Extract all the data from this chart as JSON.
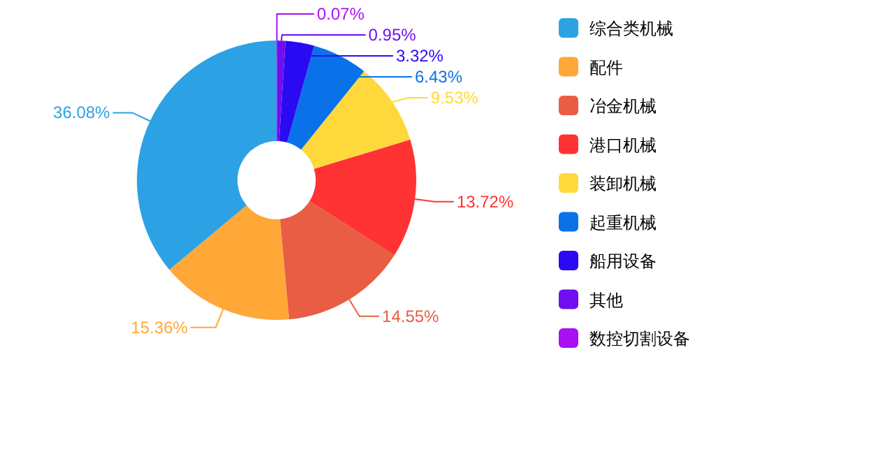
{
  "chart_data": {
    "type": "donut",
    "categories": [
      "综合类机械",
      "配件",
      "冶金机械",
      "港口机械",
      "装卸机械",
      "起重机械",
      "船用设备",
      "其他",
      "数控切割设备"
    ],
    "values": [
      36.08,
      15.36,
      14.55,
      13.72,
      9.53,
      6.43,
      3.32,
      0.95,
      0.07
    ],
    "colors": [
      "#2ca2e4",
      "#ffa838",
      "#e85d44",
      "#ff3333",
      "#ffd83c",
      "#0a72e8",
      "#2a0af2",
      "#700ef0",
      "#a810f2"
    ],
    "value_labels": [
      "36.08%",
      "15.36%",
      "14.55%",
      "13.72%",
      "9.53%",
      "6.43%",
      "3.32%",
      "0.95%",
      "0.07%"
    ],
    "legend": "right"
  }
}
